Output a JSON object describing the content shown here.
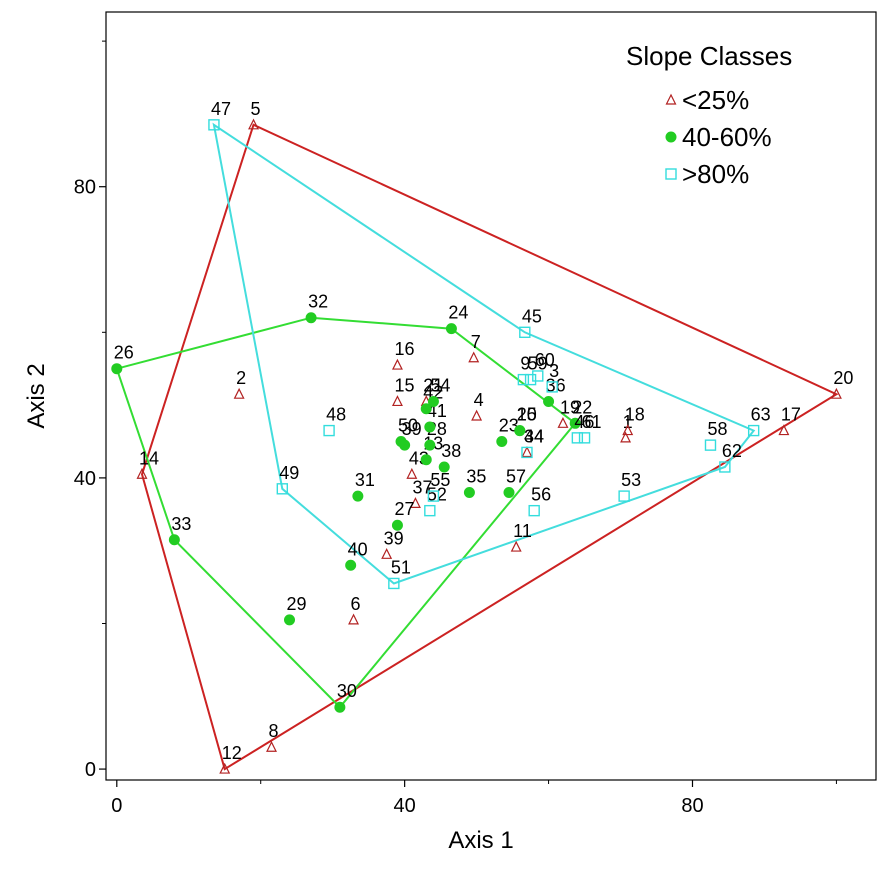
{
  "chart_data": {
    "type": "scatter",
    "xlabel": "Axis 1",
    "ylabel": "Axis 2",
    "xlim": [
      -1.5,
      105.5
    ],
    "ylim": [
      -1.5,
      104
    ],
    "xticks": [
      0,
      40,
      80
    ],
    "yticks": [
      0,
      40,
      80
    ],
    "grid": false,
    "legend": {
      "title": "Slope Classes",
      "placement": "top-right"
    },
    "series": [
      {
        "name": "<25%",
        "marker": "triangle",
        "color": "#b22222",
        "points": [
          {
            "label": "1",
            "x": 70.7,
            "y": 45.5
          },
          {
            "label": "2",
            "x": 17.0,
            "y": 51.5
          },
          {
            "label": "4",
            "x": 50.0,
            "y": 48.5
          },
          {
            "label": "5",
            "x": 19.0,
            "y": 88.5
          },
          {
            "label": "6",
            "x": 32.9,
            "y": 20.5
          },
          {
            "label": "7",
            "x": 49.6,
            "y": 56.5
          },
          {
            "label": "8",
            "x": 21.5,
            "y": 3.0
          },
          {
            "label": "11",
            "x": 55.5,
            "y": 30.5
          },
          {
            "label": "12",
            "x": 15.0,
            "y": 0.0
          },
          {
            "label": "14",
            "x": 3.5,
            "y": 40.5
          },
          {
            "label": "15",
            "x": 39.0,
            "y": 50.5
          },
          {
            "label": "16",
            "x": 39.0,
            "y": 55.5
          },
          {
            "label": "17",
            "x": 92.7,
            "y": 46.5
          },
          {
            "label": "18",
            "x": 71.0,
            "y": 46.5
          },
          {
            "label": "19",
            "x": 62.0,
            "y": 47.5
          },
          {
            "label": "20",
            "x": 100.0,
            "y": 51.5
          },
          {
            "label": "21",
            "x": 43.0,
            "y": 50.5
          },
          {
            "label": "34",
            "x": 57.0,
            "y": 43.5
          },
          {
            "label": "37",
            "x": 41.5,
            "y": 36.5
          },
          {
            "label": "39",
            "x": 37.5,
            "y": 29.5
          },
          {
            "label": "43",
            "x": 41.0,
            "y": 40.5
          }
        ]
      },
      {
        "name": "40-60%",
        "marker": "circle",
        "color": "#22cc22",
        "points": [
          {
            "label": "10",
            "x": 56.0,
            "y": 46.5
          },
          {
            "label": "13",
            "x": 43.0,
            "y": 42.5
          },
          {
            "label": "22",
            "x": 63.7,
            "y": 47.5
          },
          {
            "label": "23",
            "x": 53.5,
            "y": 45.0
          },
          {
            "label": "24",
            "x": 46.5,
            "y": 60.5
          },
          {
            "label": "25",
            "x": 56.0,
            "y": 46.5
          },
          {
            "label": "26",
            "x": 0.0,
            "y": 55.0
          },
          {
            "label": "27",
            "x": 39.0,
            "y": 33.5
          },
          {
            "label": "28",
            "x": 43.5,
            "y": 44.5
          },
          {
            "label": "29",
            "x": 24.0,
            "y": 20.5
          },
          {
            "label": "30",
            "x": 31.0,
            "y": 8.5
          },
          {
            "label": "31",
            "x": 33.5,
            "y": 37.5
          },
          {
            "label": "32",
            "x": 27.0,
            "y": 62.0
          },
          {
            "label": "33",
            "x": 8.0,
            "y": 31.5
          },
          {
            "label": "35",
            "x": 49.0,
            "y": 38.0
          },
          {
            "label": "36",
            "x": 60.0,
            "y": 50.5
          },
          {
            "label": "38",
            "x": 45.5,
            "y": 41.5
          },
          {
            "label": "39",
            "x": 40.0,
            "y": 44.5
          },
          {
            "label": "40",
            "x": 32.5,
            "y": 28.0
          },
          {
            "label": "41",
            "x": 43.5,
            "y": 47.0
          },
          {
            "label": "42",
            "x": 43.0,
            "y": 49.5
          },
          {
            "label": "50",
            "x": 39.5,
            "y": 45.0
          },
          {
            "label": "54",
            "x": 44.0,
            "y": 50.5
          },
          {
            "label": "57",
            "x": 54.5,
            "y": 38.0
          }
        ]
      },
      {
        "name": ">80%",
        "marker": "square",
        "color": "#33dddd",
        "points": [
          {
            "label": "3",
            "x": 60.5,
            "y": 52.5
          },
          {
            "label": "9",
            "x": 56.5,
            "y": 53.5
          },
          {
            "label": "44",
            "x": 57.0,
            "y": 43.5
          },
          {
            "label": "45",
            "x": 56.7,
            "y": 60.0
          },
          {
            "label": "46",
            "x": 64.0,
            "y": 45.5
          },
          {
            "label": "47",
            "x": 13.5,
            "y": 88.5
          },
          {
            "label": "48",
            "x": 29.5,
            "y": 46.5
          },
          {
            "label": "49",
            "x": 23.0,
            "y": 38.5
          },
          {
            "label": "51",
            "x": 38.5,
            "y": 25.5
          },
          {
            "label": "52",
            "x": 43.5,
            "y": 35.5
          },
          {
            "label": "53",
            "x": 70.5,
            "y": 37.5
          },
          {
            "label": "55",
            "x": 44.0,
            "y": 37.5
          },
          {
            "label": "56",
            "x": 58.0,
            "y": 35.5
          },
          {
            "label": "58",
            "x": 82.5,
            "y": 44.5
          },
          {
            "label": "59",
            "x": 57.5,
            "y": 53.5
          },
          {
            "label": "60",
            "x": 58.5,
            "y": 54.0
          },
          {
            "label": "61",
            "x": 65.0,
            "y": 45.5
          },
          {
            "label": "62",
            "x": 84.5,
            "y": 41.5
          },
          {
            "label": "63",
            "x": 88.5,
            "y": 46.5
          }
        ]
      }
    ],
    "hulls": [
      {
        "series": "<25%",
        "color": "#cc2222",
        "vertices": [
          "5",
          "20",
          "12",
          "14"
        ]
      },
      {
        "series": "40-60%",
        "color": "#33dd33",
        "vertices": [
          "26",
          "32",
          "24",
          "22",
          "30",
          "33"
        ]
      },
      {
        "series": ">80%",
        "color": "#44dddd",
        "vertices": [
          "47",
          "45",
          "63",
          "62",
          "51",
          "49"
        ]
      }
    ]
  }
}
